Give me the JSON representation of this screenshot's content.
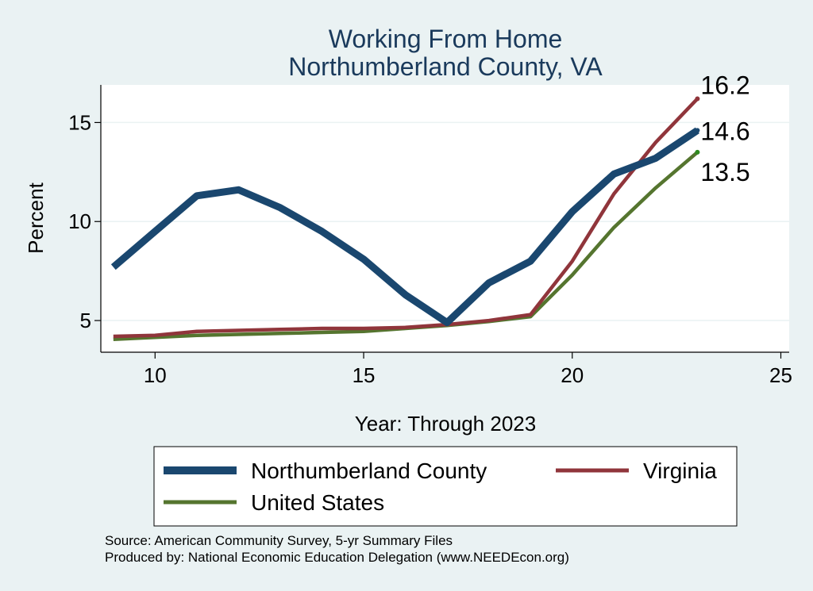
{
  "chart_data": {
    "type": "line",
    "title": [
      "Working From Home",
      "Northumberland County, VA"
    ],
    "xlabel": "Year: Through 2023",
    "ylabel": "Percent",
    "xlim": [
      8.7,
      25.2
    ],
    "ylim": [
      3.4,
      16.9
    ],
    "xticks": [
      10,
      15,
      20,
      25
    ],
    "yticks": [
      5,
      10,
      15
    ],
    "grid": "horizontal",
    "legend_position": "bottom",
    "series": [
      {
        "name": "Northumberland County",
        "color": "#1a476f",
        "x": [
          9,
          10,
          11,
          12,
          13,
          14,
          15,
          16,
          17,
          18,
          19,
          20,
          21,
          22,
          23
        ],
        "y": [
          7.7,
          9.5,
          11.3,
          11.6,
          10.7,
          9.5,
          8.1,
          6.3,
          4.9,
          6.9,
          8.0,
          10.5,
          12.4,
          13.2,
          14.6
        ],
        "end_label": "14.6"
      },
      {
        "name": "Virginia",
        "color": "#90353b",
        "x": [
          9,
          10,
          11,
          12,
          13,
          14,
          15,
          16,
          17,
          18,
          19,
          20,
          21,
          22,
          23
        ],
        "y": [
          4.2,
          4.25,
          4.45,
          4.5,
          4.55,
          4.6,
          4.6,
          4.65,
          4.8,
          5.0,
          5.3,
          8.0,
          11.4,
          14.0,
          16.2
        ],
        "end_label": "16.2"
      },
      {
        "name": "United States",
        "color": "#55752f",
        "x": [
          9,
          10,
          11,
          12,
          13,
          14,
          15,
          16,
          17,
          18,
          19,
          20,
          21,
          22,
          23
        ],
        "y": [
          4.05,
          4.15,
          4.25,
          4.3,
          4.35,
          4.4,
          4.45,
          4.6,
          4.75,
          4.95,
          5.2,
          7.3,
          9.7,
          11.7,
          13.5
        ],
        "end_label": "13.5"
      }
    ]
  },
  "source_lines": [
    "Source: American Community Survey, 5-yr Summary Files",
    "Produced by: National Economic Education Delegation (www.NEEDEcon.org)"
  ]
}
